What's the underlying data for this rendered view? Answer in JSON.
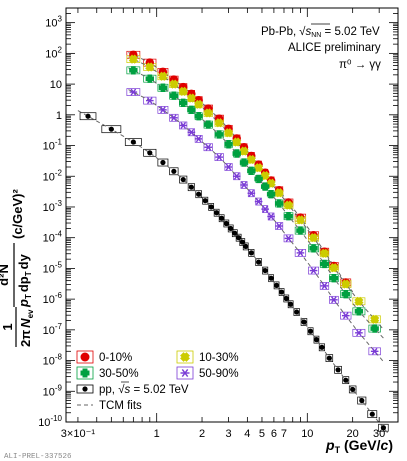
{
  "watermark": "ALI-PREL-337526",
  "annotation": {
    "system": "Pb-Pb,",
    "energy_sym": "√",
    "energy_var": "s",
    "energy_sub": "NN",
    "energy_val": " = 5.02 TeV",
    "collab": "ALICE preliminary",
    "decay": "π⁰ → γγ"
  },
  "chart_data": {
    "type": "scatter",
    "xscale": "log",
    "yscale": "log",
    "xlim": [
      0.25,
      40
    ],
    "ylim": [
      1e-10,
      3000
    ],
    "xlabel": "p_T (GeV/c)",
    "xlabel_parts": {
      "p": "p",
      "sub": "T",
      "unit": " (GeV/",
      "c": "c",
      "close": ")"
    },
    "ylabel_parts": {
      "one": "1",
      "twopi": "2π",
      "N": "N",
      "ev": "ev",
      "d2N": "d²N",
      "pT": "p",
      "T": "T",
      "dpT": "dp",
      "dy": "dy",
      "unit": " (c/GeV)²"
    },
    "xticks": [
      {
        "v": 0.3,
        "t": "3×10⁻¹"
      },
      {
        "v": 1,
        "t": "1"
      },
      {
        "v": 2,
        "t": "2"
      },
      {
        "v": 3,
        "t": "3"
      },
      {
        "v": 4,
        "t": "4"
      },
      {
        "v": 5,
        "t": "5"
      },
      {
        "v": 6,
        "t": "6"
      },
      {
        "v": 7,
        "t": "7"
      },
      {
        "v": 10,
        "t": "10"
      },
      {
        "v": 20,
        "t": "20"
      },
      {
        "v": 30,
        "t": "30"
      }
    ],
    "yticks": [
      {
        "v": 1000,
        "b": "10",
        "e": "3"
      },
      {
        "v": 100,
        "b": "10",
        "e": "2"
      },
      {
        "v": 10,
        "b": "10",
        "e": ""
      },
      {
        "v": 1,
        "b": "1",
        "e": ""
      },
      {
        "v": 0.1,
        "b": "10",
        "e": "-1"
      },
      {
        "v": 0.01,
        "b": "10",
        "e": "-2"
      },
      {
        "v": 0.001,
        "b": "10",
        "e": "-3"
      },
      {
        "v": 0.0001,
        "b": "10",
        "e": "-4"
      },
      {
        "v": 1e-05,
        "b": "10",
        "e": "-5"
      },
      {
        "v": 1e-06,
        "b": "10",
        "e": "-6"
      },
      {
        "v": 1e-07,
        "b": "10",
        "e": "-7"
      },
      {
        "v": 1e-08,
        "b": "10",
        "e": "-8"
      },
      {
        "v": 1e-09,
        "b": "10",
        "e": "-9"
      },
      {
        "v": 1e-10,
        "b": "10",
        "e": "-10"
      }
    ],
    "legend": [
      {
        "key": "c0010",
        "label": "0-10%",
        "marker": "circle",
        "color": "#e00000",
        "col": 0,
        "row": 0
      },
      {
        "key": "c1030",
        "label": "10-30%",
        "marker": "xcross",
        "color": "#cccc00",
        "col": 1,
        "row": 0
      },
      {
        "key": "c3050",
        "label": "30-50%",
        "marker": "cross",
        "color": "#00a040",
        "col": 0,
        "row": 1
      },
      {
        "key": "c5090",
        "label": "50-90%",
        "marker": "star",
        "color": "#7a3bd6",
        "col": 1,
        "row": 1
      },
      {
        "key": "pp",
        "label_pre": "pp, ",
        "label_sym": "√",
        "label_var": "s",
        "label_post": " = 5.02 TeV",
        "marker": "dot",
        "color": "#000000",
        "col": 0,
        "row": 2
      },
      {
        "key": "tcm",
        "label": "TCM fits",
        "marker": "dashed",
        "color": "#555555",
        "col": 0,
        "row": 3
      }
    ],
    "series": [
      {
        "key": "c0010",
        "name": "0-10%",
        "color": "#e00000",
        "marker": "circle",
        "size": 4.2,
        "x": [
          0.7,
          0.9,
          1.1,
          1.3,
          1.5,
          1.7,
          1.9,
          2.2,
          2.6,
          3.0,
          3.4,
          3.8,
          4.25,
          4.75,
          5.25,
          5.75,
          6.5,
          7.5,
          9,
          11,
          13,
          15,
          18
        ],
        "y": [
          90,
          50,
          25,
          14,
          8.0,
          4.8,
          3.0,
          1.6,
          0.75,
          0.35,
          0.17,
          0.088,
          0.046,
          0.024,
          0.013,
          0.0073,
          0.0035,
          0.0014,
          0.00045,
          0.00012,
          3.5e-05,
          1.2e-05,
          3.5e-06
        ]
      },
      {
        "key": "c1030",
        "name": "10-30%",
        "color": "#cccc00",
        "marker": "xcross",
        "size": 4.2,
        "x": [
          0.7,
          0.9,
          1.1,
          1.3,
          1.5,
          1.7,
          1.9,
          2.2,
          2.6,
          3.0,
          3.4,
          3.8,
          4.25,
          4.75,
          5.25,
          5.75,
          6.5,
          7.5,
          9,
          11,
          13,
          15,
          18,
          22,
          28
        ],
        "y": [
          65,
          36,
          18,
          10,
          5.8,
          3.5,
          2.2,
          1.15,
          0.55,
          0.26,
          0.13,
          0.066,
          0.035,
          0.019,
          0.0105,
          0.0059,
          0.0029,
          0.00115,
          0.00038,
          0.0001,
          3.1e-05,
          1.05e-05,
          3.1e-06,
          8.5e-07,
          2.2e-07
        ]
      },
      {
        "key": "c3050",
        "name": "30-50%",
        "color": "#00a040",
        "marker": "cross",
        "size": 4.2,
        "x": [
          0.7,
          0.9,
          1.1,
          1.3,
          1.5,
          1.7,
          1.9,
          2.2,
          2.6,
          3.0,
          3.4,
          3.8,
          4.25,
          4.75,
          5.25,
          5.75,
          6.5,
          7.5,
          9,
          11,
          13,
          15,
          18,
          22,
          28
        ],
        "y": [
          28,
          15,
          7.6,
          4.2,
          2.45,
          1.45,
          0.9,
          0.48,
          0.23,
          0.11,
          0.055,
          0.028,
          0.015,
          0.0082,
          0.0046,
          0.0026,
          0.0013,
          0.0005,
          0.00017,
          4.5e-05,
          1.4e-05,
          4.8e-06,
          1.45e-06,
          4e-07,
          1.1e-07
        ]
      },
      {
        "key": "c5090",
        "name": "50-90%",
        "color": "#7a3bd6",
        "marker": "star",
        "size": 3.8,
        "x": [
          0.7,
          0.9,
          1.1,
          1.3,
          1.5,
          1.7,
          1.9,
          2.2,
          2.6,
          3.0,
          3.4,
          3.8,
          4.25,
          4.75,
          5.25,
          5.75,
          6.5,
          7.5,
          9,
          11,
          13,
          15,
          18,
          22,
          28
        ],
        "y": [
          5.5,
          2.9,
          1.45,
          0.8,
          0.45,
          0.27,
          0.165,
          0.088,
          0.042,
          0.02,
          0.01,
          0.0052,
          0.0028,
          0.0015,
          0.00085,
          0.00049,
          0.00024,
          9.5e-05,
          3.2e-05,
          8.5e-06,
          2.7e-06,
          9.5e-07,
          2.9e-07,
          8e-08,
          2e-08
        ]
      },
      {
        "key": "pp",
        "name": "pp, √s = 5.02 TeV",
        "color": "#000000",
        "marker": "dot",
        "size": 2.6,
        "x": [
          0.35,
          0.5,
          0.7,
          0.9,
          1.1,
          1.3,
          1.5,
          1.7,
          1.9,
          2.1,
          2.3,
          2.5,
          2.7,
          2.9,
          3.1,
          3.3,
          3.5,
          3.7,
          3.9,
          4.25,
          4.75,
          5.25,
          5.75,
          6.25,
          6.75,
          7.25,
          7.75,
          8.5,
          9.5,
          10.5,
          11.5,
          12.5,
          14,
          16,
          18,
          20,
          23,
          27,
          32
        ],
        "y": [
          0.9,
          0.34,
          0.13,
          0.058,
          0.028,
          0.0145,
          0.0078,
          0.0044,
          0.0026,
          0.0016,
          0.001,
          0.00065,
          0.00043,
          0.00029,
          0.0002,
          0.00014,
          0.0001,
          7.2e-05,
          5.2e-05,
          3.2e-05,
          1.6e-05,
          8.5e-06,
          4.8e-06,
          2.8e-06,
          1.7e-06,
          1.05e-06,
          6.8e-07,
          3.8e-07,
          1.8e-07,
          9e-08,
          4.8e-08,
          2.7e-08,
          1.2e-08,
          5e-09,
          2.3e-09,
          1.15e-09,
          5e-10,
          1.8e-10,
          6.5e-11
        ]
      }
    ],
    "tcm_fits": [
      {
        "key": "c0010",
        "xr": [
          0.65,
          20
        ]
      },
      {
        "key": "c1030",
        "xr": [
          0.65,
          32
        ]
      },
      {
        "key": "c3050",
        "xr": [
          0.65,
          32
        ]
      },
      {
        "key": "c5090",
        "xr": [
          0.65,
          32
        ]
      },
      {
        "key": "pp",
        "xr": [
          0.3,
          35
        ]
      }
    ]
  }
}
